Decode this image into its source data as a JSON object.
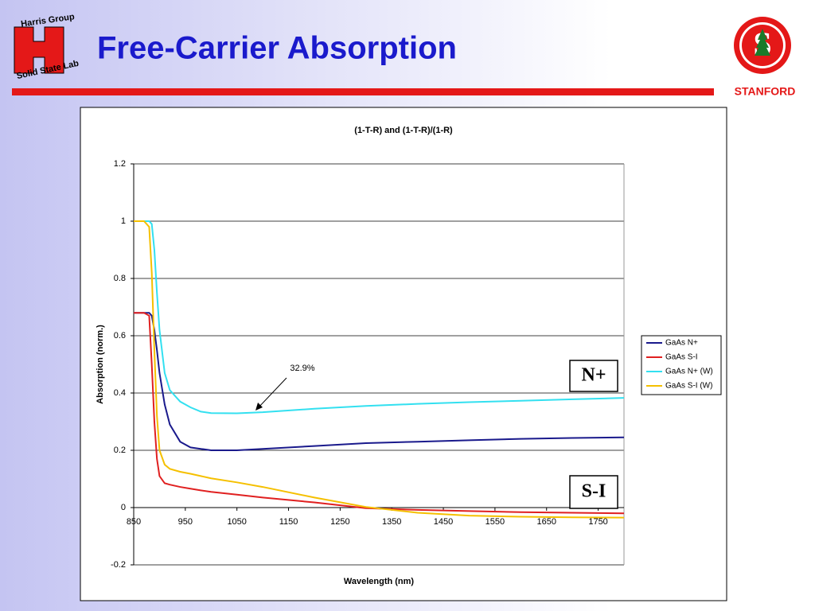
{
  "header": {
    "title": "Free-Carrier Absorption",
    "left_logo": [
      "Harris Group",
      "Solid State Lab"
    ],
    "right_logo": "STANFORD"
  },
  "chart_data": {
    "type": "line",
    "title": "(1-T-R) and (1-T-R)/(1-R)",
    "x_label": "Wavelength (nm)",
    "y_label": "Absorption (norm.)",
    "x": [
      850,
      870,
      880,
      885,
      890,
      895,
      900,
      910,
      920,
      940,
      960,
      980,
      1000,
      1050,
      1100,
      1200,
      1300,
      1400,
      1500,
      1600,
      1700,
      1800
    ],
    "series": [
      {
        "name": "GaAs N+",
        "color": "#1a1a8c",
        "values": [
          0.68,
          0.68,
          0.68,
          0.67,
          0.62,
          0.55,
          0.47,
          0.36,
          0.29,
          0.23,
          0.21,
          0.205,
          0.2,
          0.2,
          0.205,
          0.215,
          0.225,
          0.23,
          0.235,
          0.24,
          0.243,
          0.245
        ]
      },
      {
        "name": "GaAs S-I",
        "color": "#e02020",
        "values": [
          0.68,
          0.68,
          0.67,
          0.5,
          0.3,
          0.17,
          0.11,
          0.085,
          0.08,
          0.072,
          0.066,
          0.06,
          0.055,
          0.045,
          0.035,
          0.018,
          -0.002,
          -0.008,
          -0.012,
          -0.016,
          -0.018,
          -0.02
        ]
      },
      {
        "name": "GaAs N+ (W)",
        "color": "#33e0f0",
        "values": [
          1,
          1,
          1,
          0.99,
          0.9,
          0.75,
          0.62,
          0.47,
          0.41,
          0.37,
          0.35,
          0.335,
          0.33,
          0.329,
          0.333,
          0.345,
          0.355,
          0.362,
          0.368,
          0.373,
          0.378,
          0.383
        ]
      },
      {
        "name": "GaAs S-I (W)",
        "color": "#f5c000",
        "values": [
          1,
          1,
          0.98,
          0.82,
          0.55,
          0.32,
          0.2,
          0.15,
          0.135,
          0.125,
          0.118,
          0.11,
          0.102,
          0.088,
          0.072,
          0.035,
          0.002,
          -0.018,
          -0.028,
          -0.032,
          -0.034,
          -0.035
        ]
      }
    ],
    "xlim": [
      850,
      1800
    ],
    "ylim": [
      -0.2,
      1.2
    ],
    "xticks": [
      850,
      950,
      1050,
      1150,
      1250,
      1350,
      1450,
      1550,
      1650,
      1750
    ],
    "yticks": [
      -0.2,
      0,
      0.2,
      0.4,
      0.6,
      0.8,
      1,
      1.2
    ],
    "grid": true,
    "legend": "right",
    "annotations": [
      "32.9%",
      "N+",
      "S-I"
    ]
  }
}
